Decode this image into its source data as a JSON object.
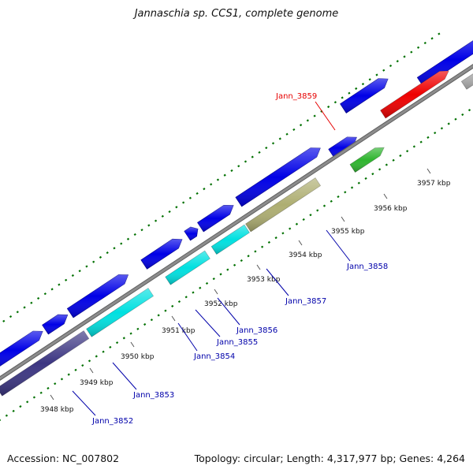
{
  "title": "Jannaschia sp. CCS1, complete genome",
  "footer": {
    "accession": "Accession: NC_007802",
    "summary": "Topology: circular; Length: 4,317,977 bp; Genes: 4,264"
  },
  "colors": {
    "forward": "#0000e6",
    "backbone": "#8c8c8c",
    "dots": "#007000",
    "highlight": "#e60000",
    "label": "#0000aa"
  },
  "ticks": [
    {
      "label": "3948 kbp"
    },
    {
      "label": "3949 kbp"
    },
    {
      "label": "3950 kbp"
    },
    {
      "label": "3951 kbp"
    },
    {
      "label": "3952 kbp"
    },
    {
      "label": "3953 kbp"
    },
    {
      "label": "3954 kbp"
    },
    {
      "label": "3955 kbp"
    },
    {
      "label": "3956 kbp"
    },
    {
      "label": "3957 kbp"
    }
  ],
  "genes": [
    {
      "name": "Jann_3852",
      "color": "#3c3682",
      "highlight": false
    },
    {
      "name": "Jann_3853",
      "color": "#00e0e0",
      "highlight": false
    },
    {
      "name": "Jann_3854",
      "color": "#00e0e0",
      "highlight": false
    },
    {
      "name": "Jann_3855",
      "color": "#00e0e0",
      "highlight": false
    },
    {
      "name": "Jann_3856",
      "color": "#00e0e0",
      "highlight": false
    },
    {
      "name": "Jann_3857",
      "color": "#aeae72",
      "highlight": false
    },
    {
      "name": "Jann_3858",
      "color": "#2fb52f",
      "highlight": false
    },
    {
      "name": "Jann_3859",
      "color": "#ee0000",
      "highlight": true
    },
    {
      "name": "",
      "color": "#bdbdbd",
      "highlight": false
    }
  ]
}
